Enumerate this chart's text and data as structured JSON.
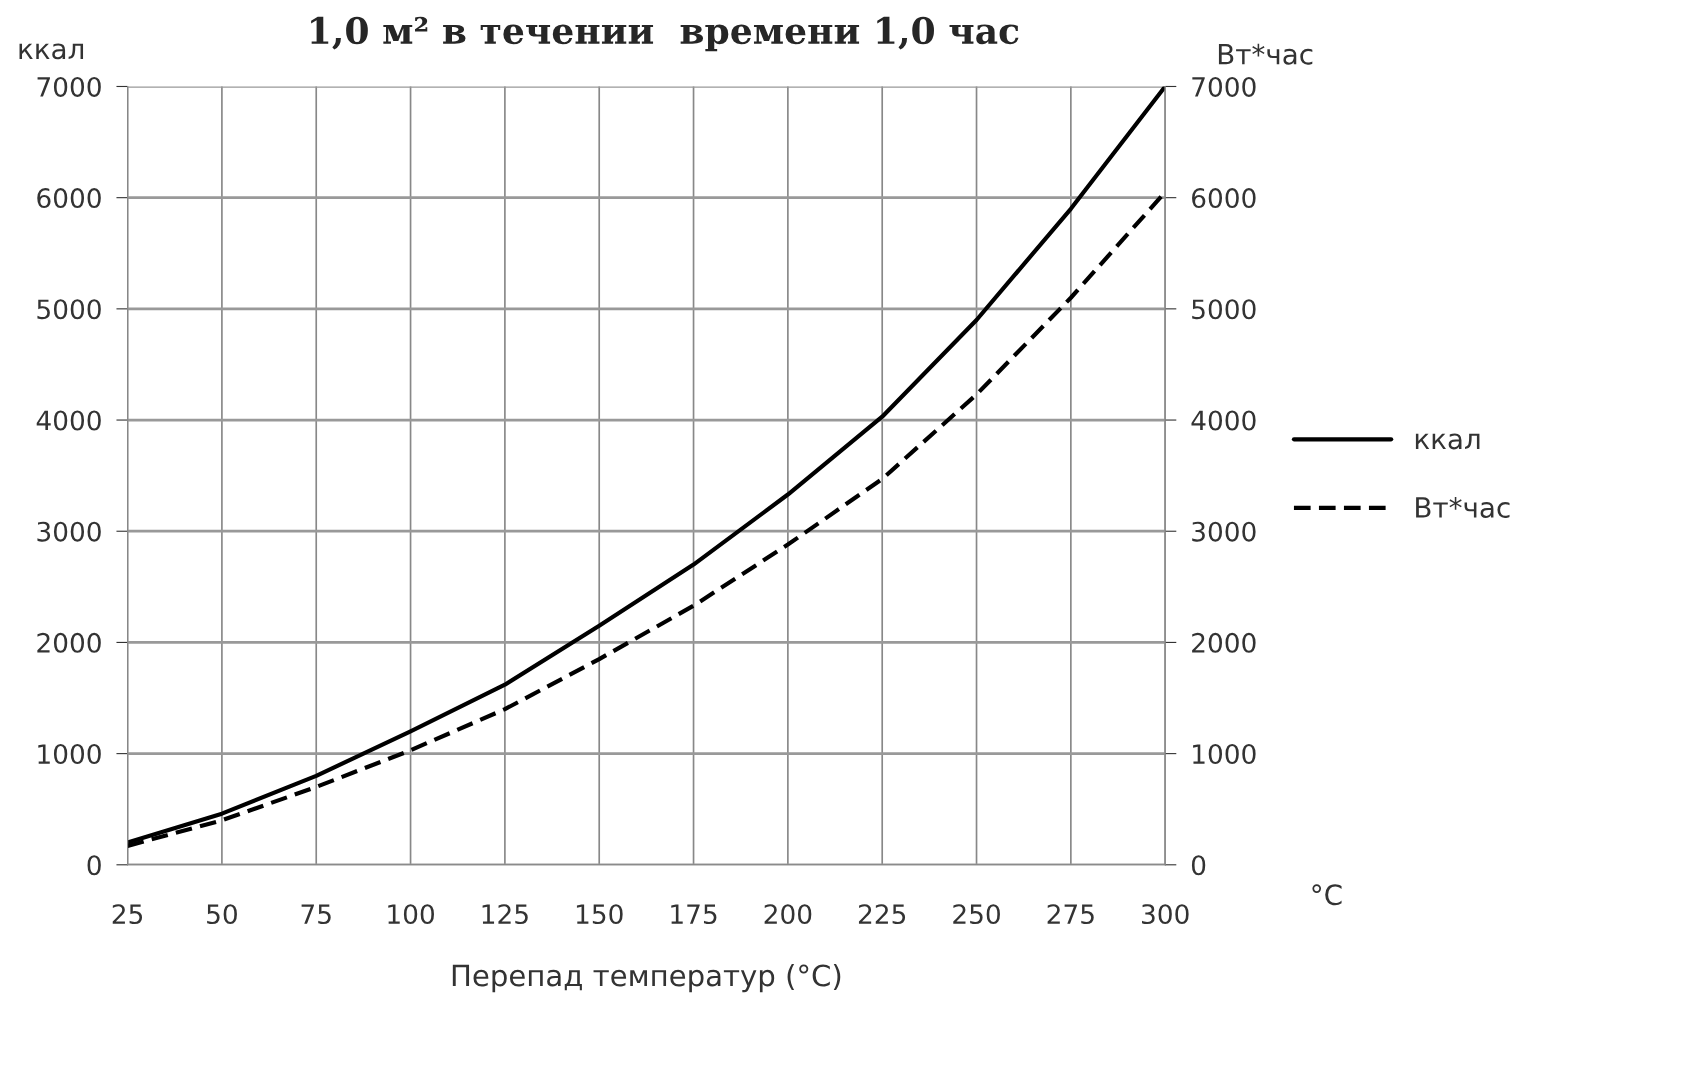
{
  "chart_data": {
    "type": "line",
    "title": "1,0 м² в течении  времени 1,0 час",
    "xlabel": "Перепад температур (°C)",
    "ylabel": "ккал",
    "y2label": "Вт*час",
    "annotations": [
      "°C"
    ],
    "x": [
      25,
      50,
      75,
      100,
      125,
      150,
      175,
      200,
      225,
      250,
      275,
      300
    ],
    "series": [
      {
        "name": "ккал",
        "color": "#000000",
        "line_style": "solid",
        "values": [
          200,
          460,
          800,
          1200,
          1620,
          2150,
          2700,
          3330,
          4030,
          4900,
          5900,
          7000
        ]
      },
      {
        "name": "Вт*час",
        "color": "#000000",
        "line_style": "dashed",
        "axis": "y2",
        "values": [
          170,
          400,
          700,
          1030,
          1400,
          1850,
          2330,
          2880,
          3470,
          4230,
          5100,
          6050
        ]
      }
    ],
    "xlim": [
      25,
      300
    ],
    "xticks": [
      25,
      50,
      75,
      100,
      125,
      150,
      175,
      200,
      225,
      250,
      275,
      300
    ],
    "ylim": [
      0,
      7000
    ],
    "yticks": [
      0,
      1000,
      2000,
      3000,
      4000,
      5000,
      6000,
      7000
    ],
    "y2lim": [
      0,
      7000
    ],
    "y2ticks": [
      0,
      1000,
      2000,
      3000,
      4000,
      5000,
      6000,
      7000
    ],
    "grid": true,
    "legend": "right",
    "marker": "none"
  }
}
